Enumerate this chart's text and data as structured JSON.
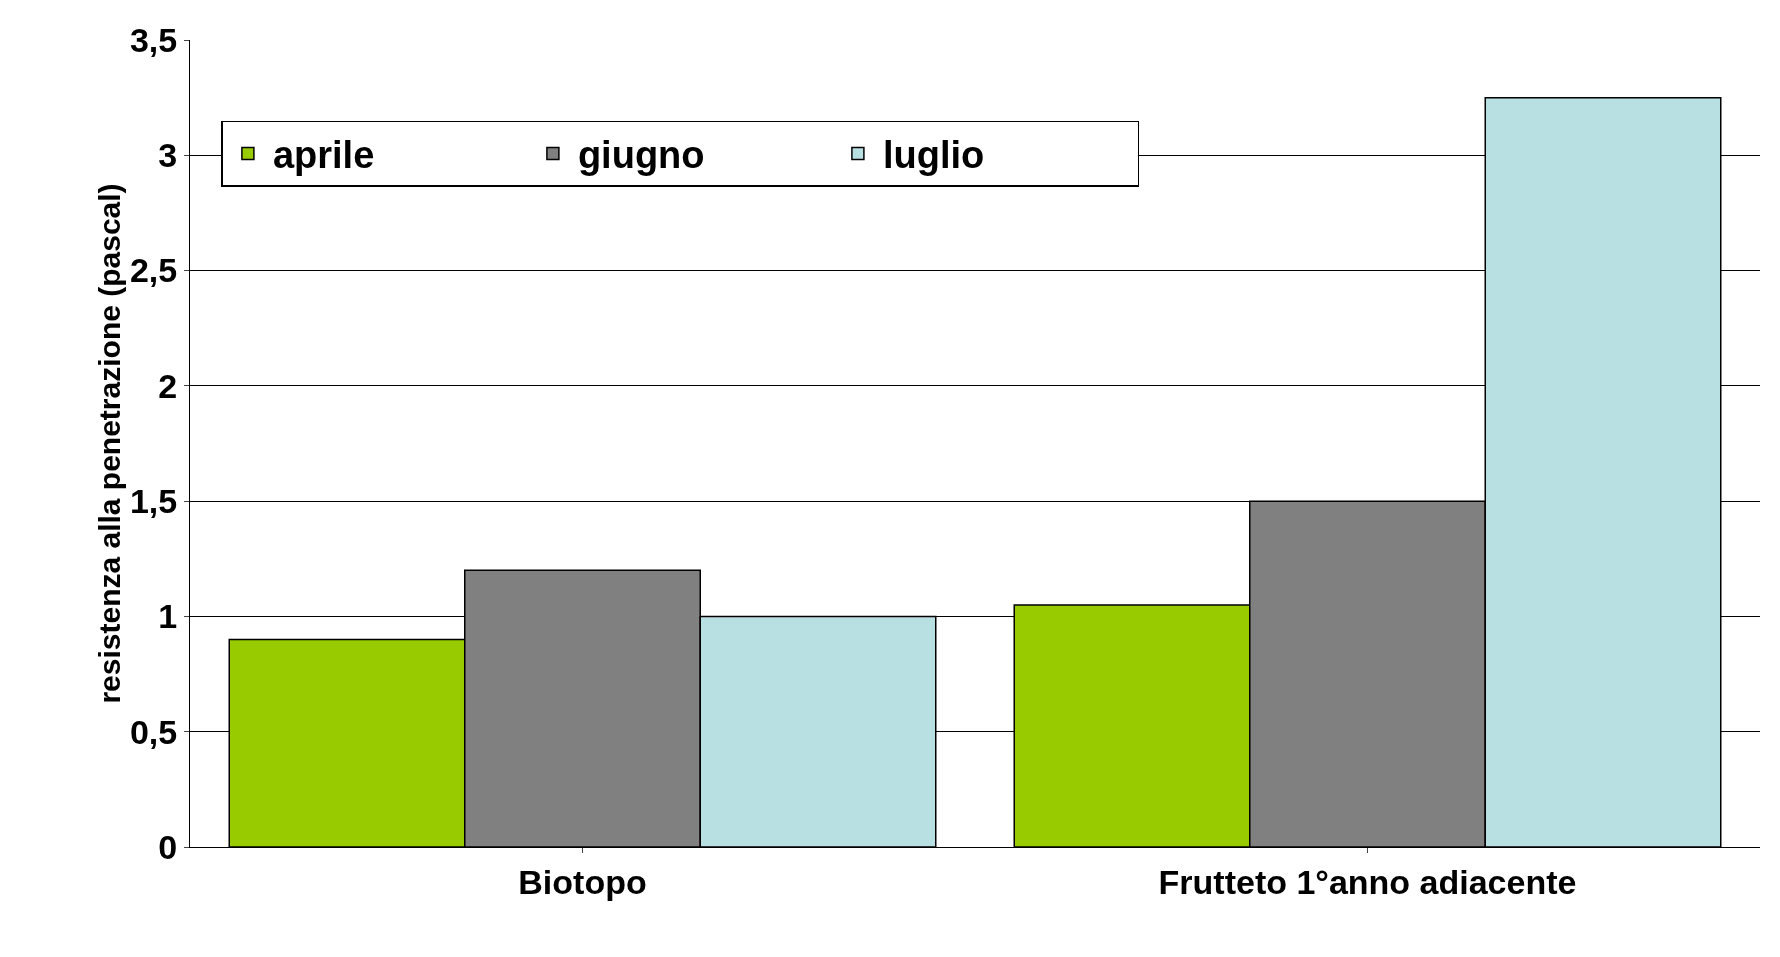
{
  "chart_data": {
    "type": "bar",
    "ylabel": "resistenza alla penetrazione (pascal)",
    "categories": [
      "Biotopo",
      "Frutteto 1°anno adiacente"
    ],
    "series": [
      {
        "name": "aprile",
        "color": "#99cc00",
        "values": [
          0.9,
          1.05
        ]
      },
      {
        "name": "giugno",
        "color": "#808080",
        "values": [
          1.2,
          1.5
        ]
      },
      {
        "name": "luglio",
        "color": "#b8e0e3",
        "values": [
          1.0,
          3.25
        ]
      }
    ],
    "ylim": [
      0,
      3.5
    ],
    "yticks": [
      0,
      {
        "value": 0.5,
        "label": "0,5"
      },
      1,
      {
        "value": 1.5,
        "label": "1,5"
      },
      2,
      {
        "value": 2.5,
        "label": "2,5"
      },
      3,
      {
        "value": 3.5,
        "label": "3,5"
      }
    ],
    "grid": "y",
    "legend": "top left"
  }
}
